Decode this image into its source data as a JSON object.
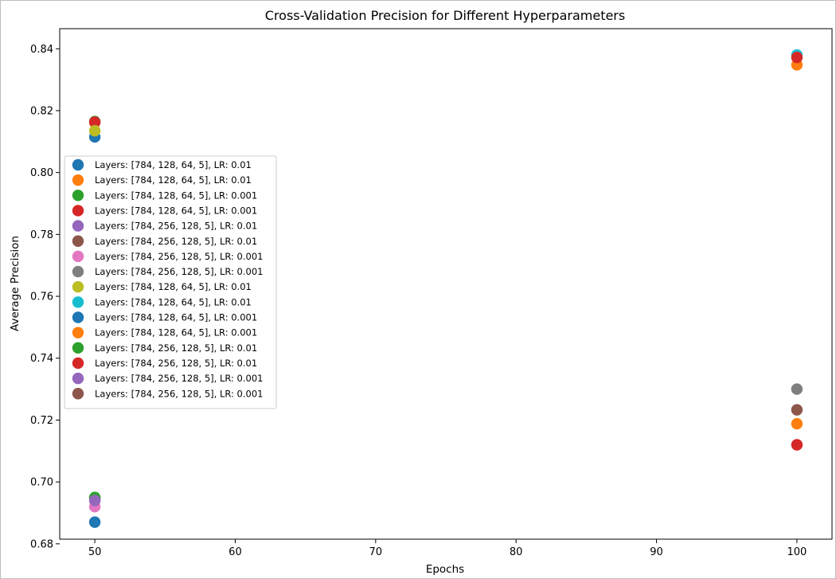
{
  "chart_data": {
    "type": "scatter",
    "title": "Cross-Validation Precision for Different Hyperparameters",
    "xlabel": "Epochs",
    "ylabel": "Average Precision",
    "xlim": [
      47.5,
      102.5
    ],
    "ylim": [
      0.6815,
      0.8465
    ],
    "xticks": [
      50,
      60,
      70,
      80,
      90,
      100
    ],
    "yticks": [
      0.68,
      0.7,
      0.72,
      0.74,
      0.76,
      0.78,
      0.8,
      0.82,
      0.84
    ],
    "xtick_labels": [
      "50",
      "60",
      "70",
      "80",
      "90",
      "100"
    ],
    "ytick_labels": [
      "0.68",
      "0.70",
      "0.72",
      "0.74",
      "0.76",
      "0.78",
      "0.80",
      "0.82",
      "0.84"
    ],
    "grid": false,
    "legend_position": "center-left",
    "series": [
      {
        "name": "Layers: [784, 128, 64, 5], LR: 0.01",
        "color": "#1f77b4",
        "x": [
          50
        ],
        "y": [
          0.8115
        ]
      },
      {
        "name": "Layers: [784, 128, 64, 5], LR: 0.01",
        "color": "#ff7f0e",
        "x": [
          50
        ],
        "y": [
          0.8162
        ]
      },
      {
        "name": "Layers: [784, 128, 64, 5], LR: 0.001",
        "color": "#2ca02c",
        "x": [
          50
        ],
        "y": [
          0.8165
        ]
      },
      {
        "name": "Layers: [784, 128, 64, 5], LR: 0.001",
        "color": "#d62728",
        "x": [
          50
        ],
        "y": [
          0.8163
        ]
      },
      {
        "name": "Layers: [784, 256, 128, 5], LR: 0.01",
        "color": "#9467bd",
        "x": [
          50
        ],
        "y": [
          0.6943
        ]
      },
      {
        "name": "Layers: [784, 256, 128, 5], LR: 0.01",
        "color": "#8c564b",
        "x": [
          50
        ],
        "y": [
          0.6948
        ]
      },
      {
        "name": "Layers: [784, 256, 128, 5], LR: 0.001",
        "color": "#e377c2",
        "x": [
          50
        ],
        "y": [
          0.692
        ]
      },
      {
        "name": "Layers: [784, 256, 128, 5], LR: 0.001",
        "color": "#7f7f7f",
        "x": [
          50
        ],
        "y": [
          0.6945
        ]
      },
      {
        "name": "Layers: [784, 128, 64, 5], LR: 0.01",
        "color": "#bcbd22",
        "x": [
          50
        ],
        "y": [
          0.8135
        ]
      },
      {
        "name": "Layers: [784, 128, 64, 5], LR: 0.01",
        "color": "#17becf",
        "x": [
          100
        ],
        "y": [
          0.838
        ]
      },
      {
        "name": "Layers: [784, 128, 64, 5], LR: 0.001",
        "color": "#1f77b4",
        "x": [
          50
        ],
        "y": [
          0.687
        ]
      },
      {
        "name": "Layers: [784, 128, 64, 5], LR: 0.001",
        "color": "#ff7f0e",
        "x": [
          100,
          100
        ],
        "y": [
          0.8348,
          0.7188
        ]
      },
      {
        "name": "Layers: [784, 256, 128, 5], LR: 0.01",
        "color": "#2ca02c",
        "x": [
          50
        ],
        "y": [
          0.695
        ]
      },
      {
        "name": "Layers: [784, 256, 128, 5], LR: 0.01",
        "color": "#d62728",
        "x": [
          100,
          100
        ],
        "y": [
          0.8372,
          0.712
        ]
      },
      {
        "name": "Layers: [784, 256, 128, 5], LR: 0.001",
        "color": "#9467bd",
        "x": [
          50
        ],
        "y": [
          0.694
        ]
      },
      {
        "name": "Layers: [784, 256, 128, 5], LR: 0.001",
        "color": "#8c564b",
        "x": [
          100
        ],
        "y": [
          0.7233
        ]
      }
    ],
    "extra_points": [
      {
        "color": "#7f7f7f",
        "x": 100,
        "y": 0.73
      }
    ]
  }
}
